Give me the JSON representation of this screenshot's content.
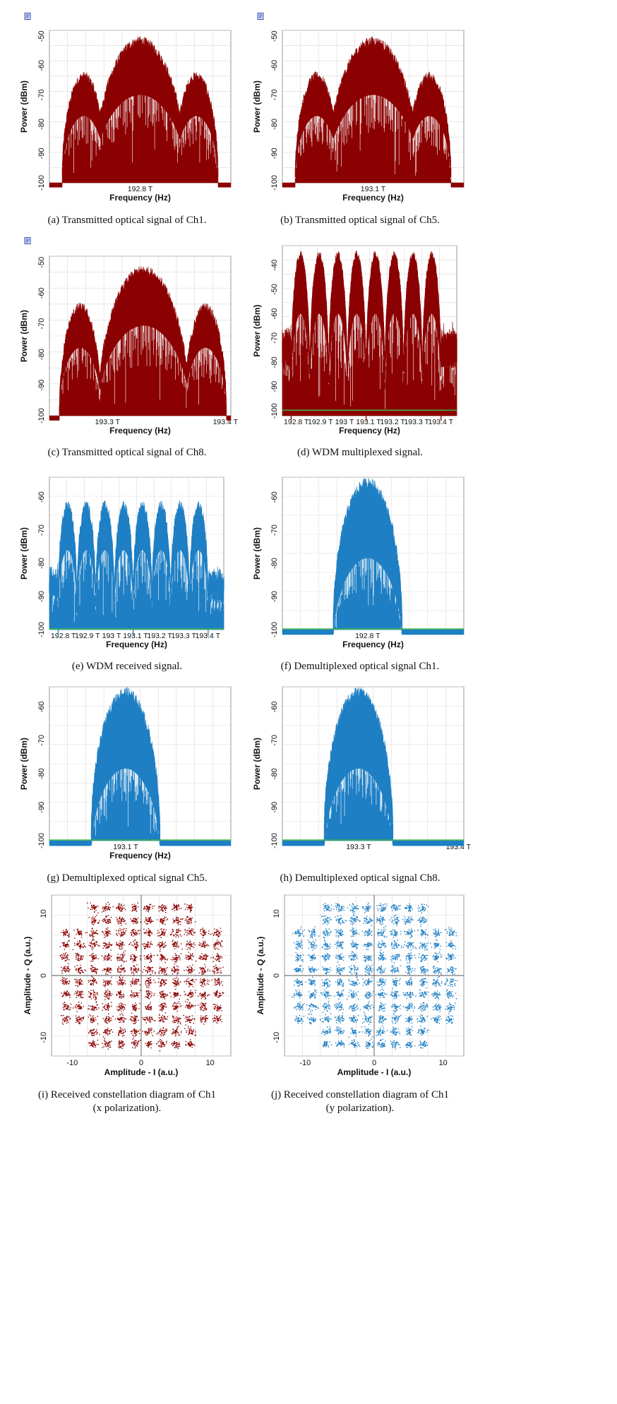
{
  "colors": {
    "transmitted": "#8b0000",
    "received": "#1e7fc4",
    "noise_floor": "#3cb84a",
    "grid": "#d9d9d9",
    "frame": "#9a9a9a"
  },
  "icons": [
    "document-icon"
  ],
  "chart_data": [
    {
      "id": "a",
      "type": "area",
      "kind": "tx",
      "title": "",
      "xlabel": "Frequency (Hz)",
      "ylabel": "Power (dBm)",
      "ylim": [
        -100,
        -48
      ],
      "yticks": [
        "-50",
        "-60",
        "-70",
        "-80",
        "-90",
        "-100"
      ],
      "xticks": [
        "192.8 T"
      ],
      "series": [
        {
          "name": "Ch1",
          "lobes": [
            {
              "center": 0.19,
              "width": 0.24,
              "peak": -64
            },
            {
              "center": 0.5,
              "width": 0.5,
              "peak": -52
            },
            {
              "center": 0.81,
              "width": 0.24,
              "peak": -64
            }
          ],
          "inner_level": -70
        }
      ],
      "noise_floor": false,
      "caption": "(a) Transmitted optical signal of Ch1."
    },
    {
      "id": "b",
      "type": "area",
      "kind": "tx",
      "title": "",
      "xlabel": "Frequency (Hz)",
      "ylabel": "Power (dBm)",
      "ylim": [
        -100,
        -48
      ],
      "yticks": [
        "-50",
        "-60",
        "-70",
        "-80",
        "-90",
        "-100"
      ],
      "xticks": [
        "193.1 T"
      ],
      "series": [
        {
          "name": "Ch5",
          "lobes": [
            {
              "center": 0.19,
              "width": 0.24,
              "peak": -64
            },
            {
              "center": 0.5,
              "width": 0.5,
              "peak": -52
            },
            {
              "center": 0.81,
              "width": 0.24,
              "peak": -64
            }
          ],
          "inner_level": -70
        }
      ],
      "noise_floor": false,
      "caption": "(b) Transmitted optical signal of Ch5."
    },
    {
      "id": "c",
      "type": "area",
      "kind": "tx",
      "title": "",
      "xlabel": "Frequency (Hz)",
      "ylabel": "Power (dBm)",
      "ylim": [
        -100,
        -48
      ],
      "yticks": [
        "-50",
        "-60",
        "-70",
        "-80",
        "-90",
        "-100"
      ],
      "xticks": [
        "193.3 T",
        "193.4 T"
      ],
      "series": [
        {
          "name": "Ch8",
          "lobes": [
            {
              "center": 0.17,
              "width": 0.23,
              "peak": -65
            },
            {
              "center": 0.52,
              "width": 0.5,
              "peak": -53
            },
            {
              "center": 0.86,
              "width": 0.23,
              "peak": -65
            }
          ],
          "inner_level": -70
        }
      ],
      "noise_floor": false,
      "caption": "(c) Transmitted optical signal of Ch8."
    },
    {
      "id": "d",
      "type": "area",
      "kind": "wdm",
      "title": "",
      "xlabel": "Frequency (Hz)",
      "ylabel": "Power (dBm)",
      "ylim": [
        -102,
        -32
      ],
      "yticks": [
        "-40",
        "-50",
        "-60",
        "-70",
        "-80",
        "-90",
        "-100"
      ],
      "xticks": [
        "192.8 T",
        "192.9 T",
        "193 T",
        "193.1 T",
        "193.2 T",
        "193.3 T",
        "193.4 T"
      ],
      "series": [
        {
          "name": "WDM multiplexed",
          "channels": 8,
          "peak": -36,
          "inner_level": -60,
          "edge_level": -70
        }
      ],
      "noise_floor": true,
      "floor_value": -100,
      "caption": "(d) WDM multiplexed signal."
    },
    {
      "id": "e",
      "type": "area",
      "kind": "wdm",
      "title": "",
      "xlabel": "Frequency (Hz)",
      "ylabel": "Power (dBm)",
      "ylim": [
        -100,
        -54
      ],
      "yticks": [
        "-60",
        "-70",
        "-80",
        "-90",
        "-100"
      ],
      "xticks": [
        "192.8 T",
        "192.9 T",
        "193 T",
        "193.1 T",
        "193.2 T",
        "193.3 T",
        "193.4 T"
      ],
      "series": [
        {
          "name": "WDM received",
          "channels": 8,
          "peak": -63,
          "inner_level": -76,
          "edge_level": -85
        }
      ],
      "noise_floor": true,
      "floor_value": -100,
      "caption": "(e) WDM received signal."
    },
    {
      "id": "f",
      "type": "area",
      "kind": "rx",
      "title": "",
      "xlabel": "Frequency (Hz)",
      "ylabel": "Power (dBm)",
      "ylim": [
        -100,
        -54
      ],
      "yticks": [
        "-60",
        "-70",
        "-80",
        "-90",
        "-100"
      ],
      "xticks": [
        "192.8 T"
      ],
      "series": [
        {
          "name": "Ch1",
          "lobes": [
            {
              "center": 0.47,
              "width": 0.38,
              "peak": -56
            }
          ],
          "inner_level": -76
        }
      ],
      "noise_floor": true,
      "floor_value": -100,
      "caption": "(f) Demultiplexed optical signal Ch1."
    },
    {
      "id": "g",
      "type": "area",
      "kind": "rx",
      "title": "",
      "xlabel": "Frequency (Hz)",
      "ylabel": "Power (dBm)",
      "ylim": [
        -100,
        -54
      ],
      "yticks": [
        "-60",
        "-70",
        "-80",
        "-90",
        "-100"
      ],
      "xticks": [
        "193.1 T"
      ],
      "series": [
        {
          "name": "Ch5",
          "lobes": [
            {
              "center": 0.42,
              "width": 0.38,
              "peak": -56
            }
          ],
          "inner_level": -76
        }
      ],
      "noise_floor": true,
      "floor_value": -100,
      "caption": "(g) Demultiplexed optical signal Ch5."
    },
    {
      "id": "h",
      "type": "area",
      "kind": "rx",
      "title": "",
      "xlabel": "",
      "ylabel": "Power (dBm)",
      "ylim": [
        -100,
        -54
      ],
      "yticks": [
        "-60",
        "-70",
        "-80",
        "-90",
        "-100"
      ],
      "xticks": [
        "193.3 T",
        "193.4 T"
      ],
      "series": [
        {
          "name": "Ch8",
          "lobes": [
            {
              "center": 0.42,
              "width": 0.38,
              "peak": -56
            }
          ],
          "inner_level": -76
        }
      ],
      "noise_floor": true,
      "floor_value": -100,
      "caption": "(h) Demultiplexed optical signal Ch8."
    },
    {
      "id": "i",
      "type": "scatter",
      "kind": "constellation",
      "title": "",
      "xlabel": "Amplitude - I (a.u.)",
      "ylabel": "Amplitude - Q (a.u.)",
      "xlim": [
        -13,
        13
      ],
      "ylim": [
        -13,
        13
      ],
      "xticks": [
        "-10",
        "0",
        "10"
      ],
      "yticks": [
        "10",
        "0",
        "-10"
      ],
      "levels": [
        -11,
        -9,
        -7,
        -5,
        -3,
        -1,
        1,
        3,
        5,
        7,
        9,
        11
      ],
      "omit_corners": true,
      "color": "tx",
      "caption_line1": "(i) Received constellation diagram of Ch1",
      "caption_line2": "(x polarization)."
    },
    {
      "id": "j",
      "type": "scatter",
      "kind": "constellation",
      "title": "",
      "xlabel": "Amplitude - I (a.u.)",
      "ylabel": "Amplitude - Q (a.u.)",
      "xlim": [
        -13,
        13
      ],
      "ylim": [
        -13,
        13
      ],
      "xticks": [
        "-10",
        "0",
        "10"
      ],
      "yticks": [
        "10",
        "0",
        "-10"
      ],
      "levels": [
        -11,
        -9,
        -7,
        -5,
        -3,
        -1,
        1,
        3,
        5,
        7,
        9,
        11
      ],
      "omit_corners": true,
      "color": "rx",
      "caption_line1": "(j) Received constellation diagram of Ch1",
      "caption_line2": "(y polarization)."
    }
  ]
}
